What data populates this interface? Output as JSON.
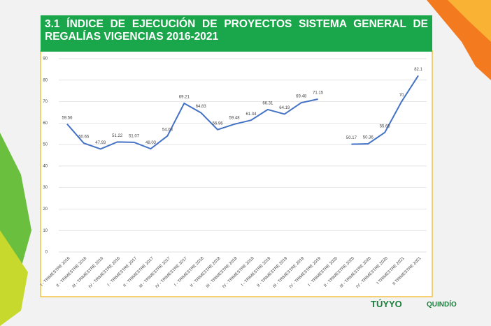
{
  "chart_data": {
    "type": "line",
    "title": "3.1 ÍNDICE DE EJECUCIÓN DE PROYECTOS SISTEMA GENERAL DE REGALÍAS VIGENCIAS 2016-2021",
    "categories": [
      "I - TRIMESTRE 2016",
      "II - TRIMESTRE 2016",
      "III - TRIMESTRE 2016",
      "IV - TRIMESTRE 2016",
      "I - TRIMESTRE 2017",
      "II - TRIMESTRE 2017",
      "III - TRIMESTRE 2017",
      "IV - TRIMESTRE 2017",
      "I - TRIMESTRE 2018",
      "II - TRIMESTRE 2018",
      "III - TRIMESTRE 2018",
      "IV - TRIMESTRE 2018",
      "I - TRIMESTRE 2019",
      "II - TRIMESTRE 2019",
      "III - TRIMESTRE 2019",
      "IV - TRIMESTRE 2019",
      "I - TRIMESTRE 2020",
      "II - TRIMESTRE 2020",
      "III - TRIMESTRE 2020",
      "IV - TRIMESTRE 2020",
      "I TRIMESTRE 2021",
      "II TRIMESTRE 2021"
    ],
    "values": [
      59.56,
      50.65,
      47.93,
      51.22,
      51.07,
      48.03,
      54.03,
      69.21,
      64.83,
      56.96,
      59.48,
      61.34,
      66.31,
      64.19,
      69.48,
      71.15,
      null,
      50.17,
      50.36,
      55.65,
      70,
      82.1
    ],
    "color": "#4472c4",
    "ylim": [
      0,
      90
    ],
    "yticks": [
      0,
      10,
      20,
      30,
      40,
      50,
      60,
      70,
      80,
      90
    ],
    "grid": true
  },
  "footer": {
    "logos": [
      "TÚYYO",
      "QUINDÍO"
    ]
  }
}
